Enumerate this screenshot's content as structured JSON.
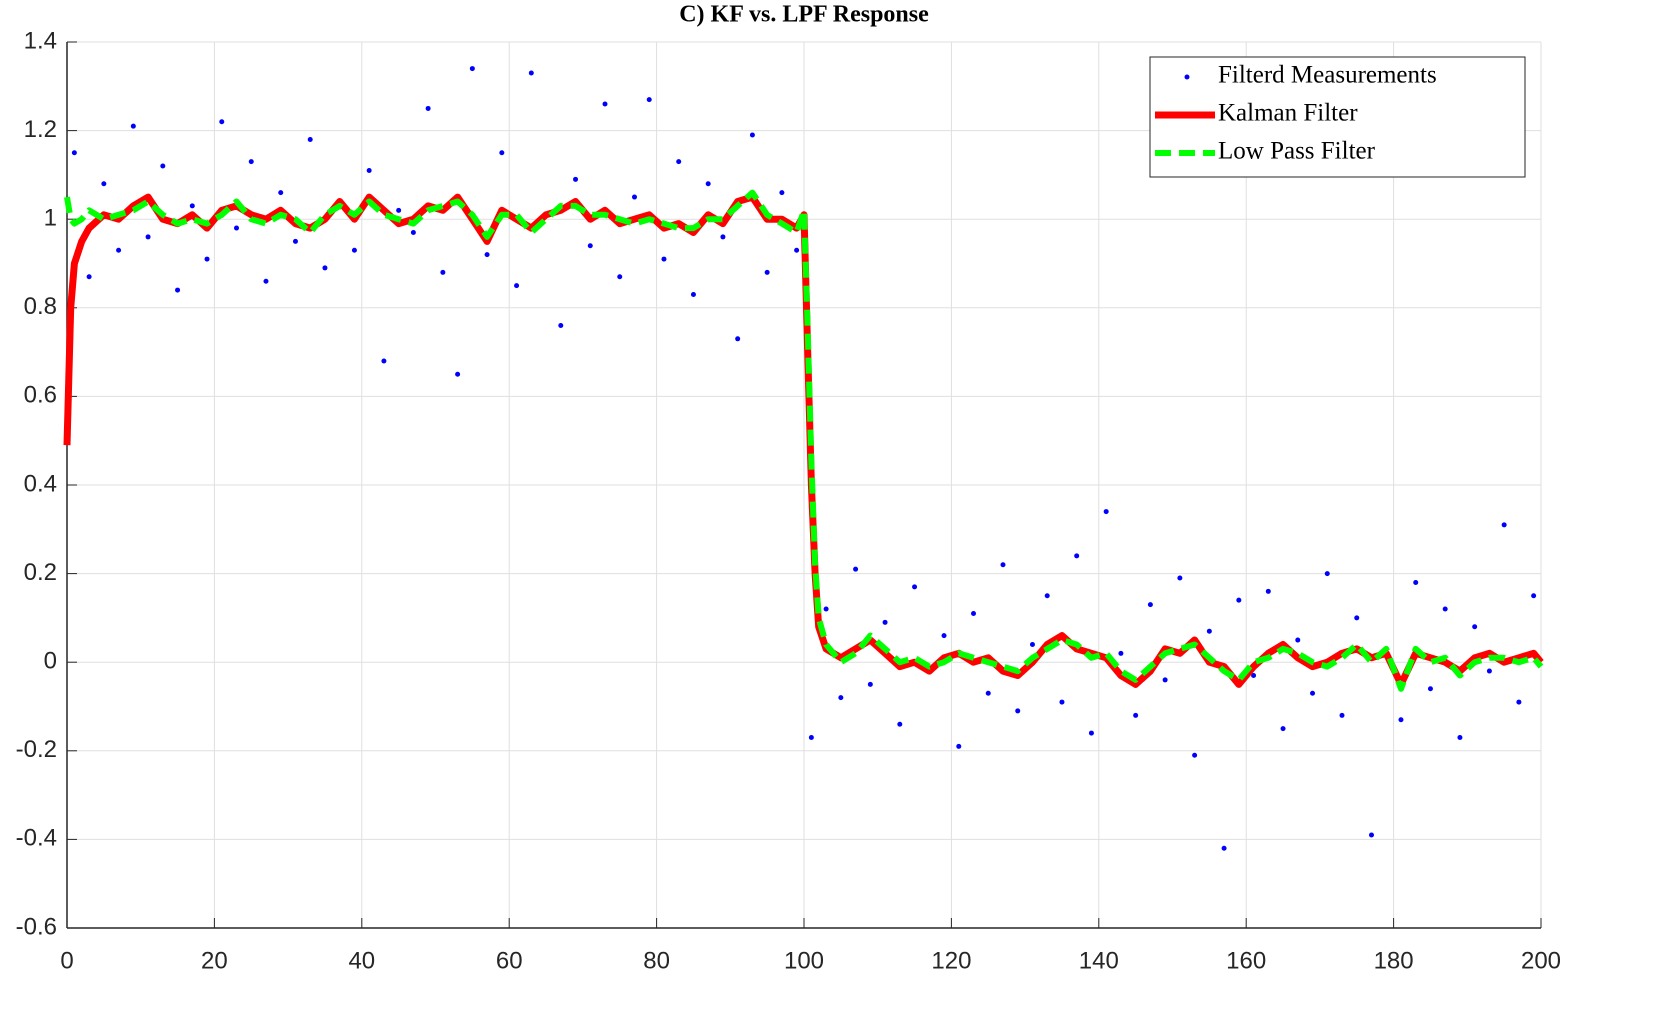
{
  "chart_data": {
    "type": "line",
    "title": "C) KF vs. LPF Response",
    "xlim": [
      0,
      200
    ],
    "xticks": [
      0,
      20,
      40,
      60,
      80,
      100,
      120,
      140,
      160,
      180,
      200
    ],
    "ylim": [
      -0.6,
      1.4
    ],
    "yticks": [
      -0.6,
      -0.4,
      -0.2,
      0,
      0.2,
      0.4,
      0.6,
      0.8,
      1,
      1.2,
      1.4
    ],
    "grid": true,
    "legend": "northeast",
    "x": [
      0,
      0.5,
      1,
      2,
      3,
      5,
      7,
      9,
      11,
      13,
      15,
      17,
      19,
      21,
      23,
      25,
      27,
      29,
      31,
      33,
      35,
      37,
      39,
      41,
      43,
      45,
      47,
      49,
      51,
      53,
      55,
      57,
      59,
      61,
      63,
      65,
      67,
      69,
      71,
      73,
      75,
      77,
      79,
      81,
      83,
      85,
      87,
      89,
      91,
      93,
      95,
      97,
      99,
      100,
      100.5,
      101,
      101.5,
      102,
      103,
      105,
      107,
      109,
      111,
      113,
      115,
      117,
      119,
      121,
      123,
      125,
      127,
      129,
      131,
      133,
      135,
      137,
      139,
      141,
      143,
      145,
      147,
      149,
      151,
      153,
      155,
      157,
      159,
      161,
      163,
      165,
      167,
      169,
      171,
      173,
      175,
      177,
      179,
      181,
      183,
      185,
      187,
      189,
      191,
      193,
      195,
      197,
      199,
      200
    ],
    "series": [
      {
        "name": "Filterd Measurements",
        "color": "#0000ff",
        "type": "scatter",
        "x": [
          1,
          3,
          5,
          7,
          9,
          11,
          13,
          15,
          17,
          19,
          21,
          23,
          25,
          27,
          29,
          31,
          33,
          35,
          37,
          39,
          41,
          43,
          45,
          47,
          49,
          51,
          53,
          55,
          57,
          59,
          61,
          63,
          65,
          67,
          69,
          71,
          73,
          75,
          77,
          79,
          81,
          83,
          85,
          87,
          89,
          91,
          93,
          95,
          97,
          99,
          101,
          103,
          105,
          107,
          109,
          111,
          113,
          115,
          117,
          119,
          121,
          123,
          125,
          127,
          129,
          131,
          133,
          135,
          137,
          139,
          141,
          143,
          145,
          147,
          149,
          151,
          153,
          155,
          157,
          159,
          161,
          163,
          165,
          167,
          169,
          171,
          173,
          175,
          177,
          179,
          181,
          183,
          185,
          187,
          189,
          191,
          193,
          195,
          197,
          199
        ],
        "values": [
          1.15,
          0.87,
          1.08,
          0.93,
          1.21,
          0.96,
          1.12,
          0.84,
          1.03,
          0.91,
          1.22,
          0.98,
          1.13,
          0.86,
          1.06,
          0.95,
          1.18,
          0.89,
          1.04,
          0.93,
          1.11,
          0.68,
          1.02,
          0.97,
          1.25,
          0.88,
          0.65,
          1.34,
          0.92,
          1.15,
          0.85,
          1.33,
          1.01,
          0.76,
          1.09,
          0.94,
          1.26,
          0.87,
          1.05,
          1.27,
          0.91,
          1.13,
          0.83,
          1.08,
          0.96,
          0.73,
          1.19,
          0.88,
          1.06,
          0.93,
          -0.17,
          0.12,
          -0.08,
          0.21,
          -0.05,
          0.09,
          -0.14,
          0.17,
          -0.02,
          0.06,
          -0.19,
          0.11,
          -0.07,
          0.22,
          -0.11,
          0.04,
          0.15,
          -0.09,
          0.24,
          -0.16,
          0.34,
          0.02,
          -0.12,
          0.13,
          -0.04,
          0.19,
          -0.21,
          0.07,
          -0.42,
          0.14,
          -0.03,
          0.16,
          -0.15,
          0.05,
          -0.07,
          0.2,
          -0.12,
          0.1,
          -0.39,
          0.03,
          -0.13,
          0.18,
          -0.06,
          0.12,
          -0.17,
          0.08,
          -0.02,
          0.31,
          -0.09,
          0.15
        ]
      },
      {
        "name": "Kalman Filter",
        "color": "#ff0000",
        "type": "line",
        "values": [
          0.49,
          0.8,
          0.9,
          0.95,
          0.98,
          1.01,
          1.0,
          1.03,
          1.05,
          1.0,
          0.99,
          1.01,
          0.98,
          1.02,
          1.03,
          1.01,
          1.0,
          1.02,
          0.99,
          0.98,
          1.0,
          1.04,
          1.0,
          1.05,
          1.02,
          0.99,
          1.0,
          1.03,
          1.02,
          1.05,
          1.0,
          0.95,
          1.02,
          1.0,
          0.98,
          1.01,
          1.02,
          1.04,
          1.0,
          1.02,
          0.99,
          1.0,
          1.01,
          0.98,
          0.99,
          0.97,
          1.01,
          0.99,
          1.04,
          1.05,
          1.0,
          1.0,
          0.98,
          1.01,
          0.7,
          0.4,
          0.2,
          0.08,
          0.03,
          0.01,
          0.03,
          0.05,
          0.02,
          -0.01,
          0.0,
          -0.02,
          0.01,
          0.02,
          0.0,
          0.01,
          -0.02,
          -0.03,
          0.0,
          0.04,
          0.06,
          0.03,
          0.02,
          0.01,
          -0.03,
          -0.05,
          -0.02,
          0.03,
          0.02,
          0.05,
          0.0,
          -0.01,
          -0.05,
          -0.01,
          0.02,
          0.04,
          0.01,
          -0.01,
          0.0,
          0.02,
          0.03,
          0.01,
          0.02,
          -0.05,
          0.02,
          0.01,
          0.0,
          -0.02,
          0.01,
          0.02,
          0.0,
          0.01,
          0.02,
          0.0
        ]
      },
      {
        "name": "Low Pass Filter",
        "color": "#00ff00",
        "type": "dashed",
        "values": [
          1.05,
          1.0,
          0.99,
          1.0,
          1.02,
          1.0,
          1.01,
          1.02,
          1.04,
          1.01,
          0.99,
          1.0,
          0.99,
          1.01,
          1.04,
          1.0,
          0.99,
          1.01,
          1.0,
          0.97,
          1.01,
          1.03,
          1.01,
          1.04,
          1.01,
          1.0,
          0.99,
          1.02,
          1.03,
          1.04,
          1.01,
          0.96,
          1.01,
          1.01,
          0.97,
          1.0,
          1.03,
          1.03,
          1.01,
          1.01,
          1.0,
          0.99,
          1.0,
          0.99,
          0.98,
          0.98,
          1.0,
          1.0,
          1.03,
          1.06,
          1.01,
          0.99,
          0.97,
          1.02,
          0.75,
          0.45,
          0.22,
          0.1,
          0.04,
          0.0,
          0.02,
          0.06,
          0.03,
          0.0,
          0.01,
          -0.01,
          0.0,
          0.02,
          0.01,
          0.0,
          -0.01,
          -0.02,
          0.01,
          0.03,
          0.05,
          0.04,
          0.01,
          0.02,
          -0.02,
          -0.04,
          -0.01,
          0.02,
          0.03,
          0.04,
          0.01,
          -0.02,
          -0.04,
          0.0,
          0.01,
          0.03,
          0.02,
          0.0,
          -0.01,
          0.01,
          0.04,
          0.0,
          0.03,
          -0.06,
          0.03,
          0.0,
          0.01,
          -0.03,
          0.0,
          0.01,
          0.01,
          0.0,
          0.01,
          -0.01
        ]
      }
    ]
  }
}
